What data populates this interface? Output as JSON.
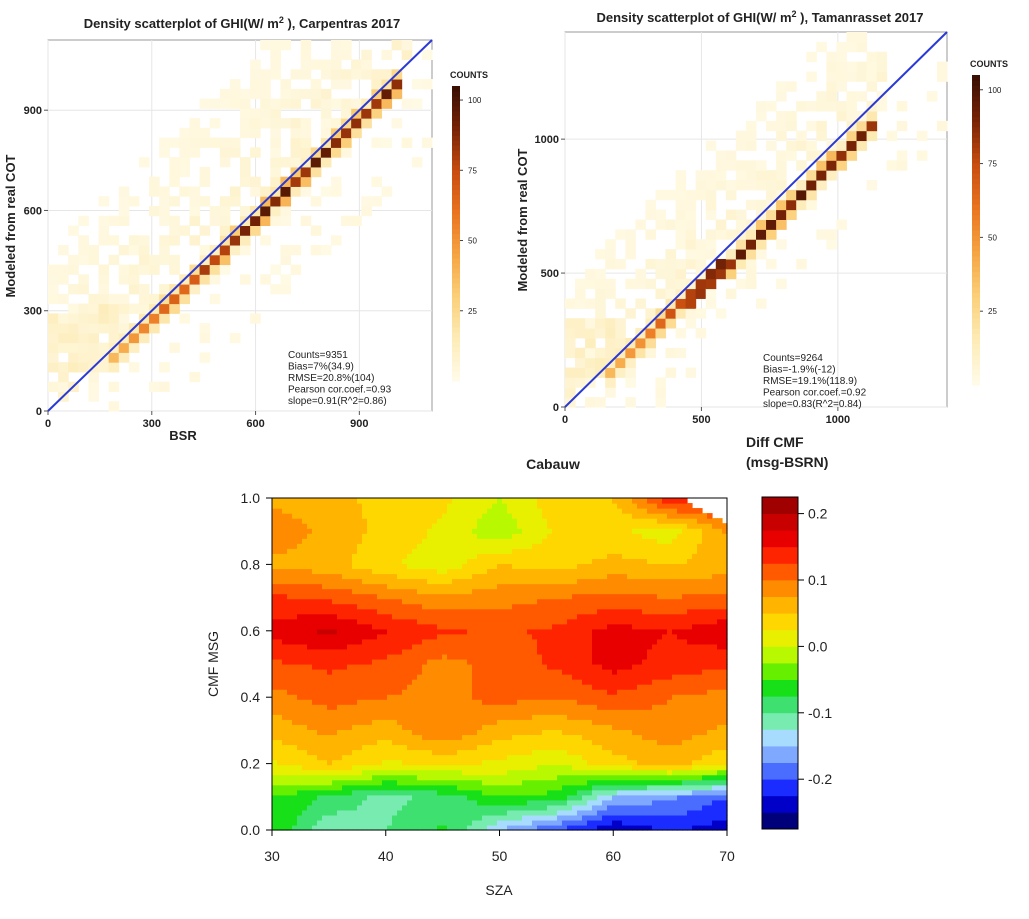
{
  "colors": {
    "diagonal": "#2a3ad6",
    "density_ramp": [
      "#fffbe8",
      "#fdebb5",
      "#fbcf78",
      "#f6a443",
      "#ea7420",
      "#c94d10",
      "#7a2406",
      "#3b1003"
    ],
    "contour_ramp": [
      "#00007a",
      "#0000c8",
      "#1a2cff",
      "#4a6cff",
      "#7fa8ff",
      "#a8dcff",
      "#78ecb0",
      "#3ee070",
      "#18e018",
      "#66f000",
      "#b8f800",
      "#e8f000",
      "#ffd700",
      "#ffb400",
      "#ff8c00",
      "#ff5a00",
      "#ff2400",
      "#e80000",
      "#c80000",
      "#a00000"
    ]
  },
  "chart_data": [
    {
      "type": "heatmap",
      "title": "Density scatterplot of GHI(W/ m",
      "title_sup": "2",
      "title_rest": " ), Carpentras  2017",
      "xlabel": "BSR",
      "ylabel": "Modeled from real COT",
      "xlim": [
        0,
        1110
      ],
      "ylim": [
        0,
        1110
      ],
      "xticks": [
        0,
        300,
        600,
        900
      ],
      "yticks": [
        0,
        300,
        600,
        900
      ],
      "tick_labels_x": [
        "0",
        "300",
        "600",
        "900"
      ],
      "tick_labels_y": [
        "0",
        "300",
        "600",
        "900"
      ],
      "colorbar": {
        "title": "COUNTS",
        "ticks": [
          25,
          50,
          75,
          100
        ],
        "labels": [
          "25",
          "50",
          "75",
          "100"
        ],
        "range": [
          0,
          105
        ]
      },
      "ridge": {
        "slope": 1.0,
        "intercept": -25,
        "start": 200,
        "end": 990
      },
      "diagonal": "y = x",
      "stats": [
        "Counts=9351",
        "Bias=7%(34.9)",
        "RMSE=20.8%(104)",
        "Pearson cor.coef.=0.93",
        "slope=0.91(R^2=0.86)"
      ]
    },
    {
      "type": "heatmap",
      "title": "Density scatterplot of GHI(W/ m",
      "title_sup": "2",
      "title_rest": " ), Tamanrasset  2017",
      "xlabel": "",
      "ylabel": "Modeled from real COT",
      "xlim": [
        0,
        1400
      ],
      "ylim": [
        0,
        1400
      ],
      "xticks": [
        0,
        500,
        1000
      ],
      "yticks": [
        0,
        500,
        1000
      ],
      "tick_labels_x": [
        "0",
        "500",
        "1000"
      ],
      "tick_labels_y": [
        "0",
        "500",
        "1000"
      ],
      "colorbar": {
        "title": "COUNTS",
        "ticks": [
          25,
          50,
          75,
          100
        ],
        "labels": [
          "25",
          "50",
          "75",
          "100"
        ],
        "range": [
          0,
          105
        ]
      },
      "ridge": {
        "slope": 0.95,
        "intercept": -30,
        "start": 180,
        "end": 1100
      },
      "diagonal": "y = x",
      "stats": [
        "Counts=9264",
        "Bias=-1.9%(-12)",
        "RMSE=19.1%(118.9)",
        "Pearson cor.coef.=0.92",
        "slope=0.83(R^2=0.84)"
      ]
    },
    {
      "type": "heatmap",
      "title": "Cabauw",
      "xlabel": "SZA",
      "ylabel": "CMF MSG",
      "xlim": [
        30,
        70
      ],
      "ylim": [
        0,
        1
      ],
      "x": [
        30,
        35,
        40,
        45,
        50,
        55,
        60,
        65,
        70
      ],
      "y": [
        0.0,
        0.1,
        0.2,
        0.3,
        0.4,
        0.5,
        0.6,
        0.7,
        0.8,
        0.9,
        1.0
      ],
      "z": [
        [
          -0.05,
          -0.12,
          -0.1,
          -0.07,
          -0.15,
          -0.2,
          -0.25,
          -0.22,
          -0.24
        ],
        [
          -0.05,
          -0.08,
          -0.11,
          -0.09,
          -0.05,
          -0.06,
          -0.15,
          -0.17,
          -0.2
        ],
        [
          0.02,
          0.05,
          0.02,
          0.03,
          0.02,
          0.0,
          0.04,
          0.06,
          0.03
        ],
        [
          0.06,
          0.08,
          0.06,
          0.1,
          0.06,
          0.05,
          0.07,
          0.09,
          0.07
        ],
        [
          0.09,
          0.11,
          0.1,
          0.09,
          0.11,
          0.1,
          0.12,
          0.1,
          0.09
        ],
        [
          0.12,
          0.13,
          0.12,
          0.09,
          0.11,
          0.13,
          0.16,
          0.14,
          0.13
        ],
        [
          0.16,
          0.18,
          0.15,
          0.13,
          0.12,
          0.13,
          0.16,
          0.15,
          0.17
        ],
        [
          0.13,
          0.12,
          0.1,
          0.08,
          0.09,
          0.1,
          0.11,
          0.1,
          0.11
        ],
        [
          0.07,
          0.06,
          0.03,
          0.01,
          0.05,
          0.04,
          0.06,
          0.05,
          0.06
        ],
        [
          0.09,
          0.07,
          0.04,
          0.02,
          -0.02,
          0.03,
          0.03,
          0.01,
          0.08
        ],
        [
          0.07,
          0.06,
          0.04,
          0.03,
          0.0,
          0.04,
          0.05,
          0.15,
          0.15
        ]
      ],
      "levels_min": -0.275,
      "levels_step": 0.025,
      "xticks": [
        30,
        40,
        50,
        60,
        70
      ],
      "yticks": [
        0.0,
        0.2,
        0.4,
        0.6,
        0.8,
        1.0
      ],
      "tick_labels_x": [
        "30",
        "40",
        "50",
        "60",
        "70"
      ],
      "tick_labels_y": [
        "0.0",
        "0.2",
        "0.4",
        "0.6",
        "0.8",
        "1.0"
      ],
      "colorbar": {
        "title": "Diff CMF\n(msg-BSRN)",
        "title_line1": "Diff CMF",
        "title_line2": "(msg-BSRN)",
        "range": [
          -0.275,
          0.225
        ],
        "ticks": [
          0.2,
          0.1,
          0.0,
          -0.1,
          -0.2
        ],
        "labels": [
          "0.2",
          "0.1",
          "0.0",
          "-0.1",
          "-0.2"
        ]
      }
    }
  ]
}
